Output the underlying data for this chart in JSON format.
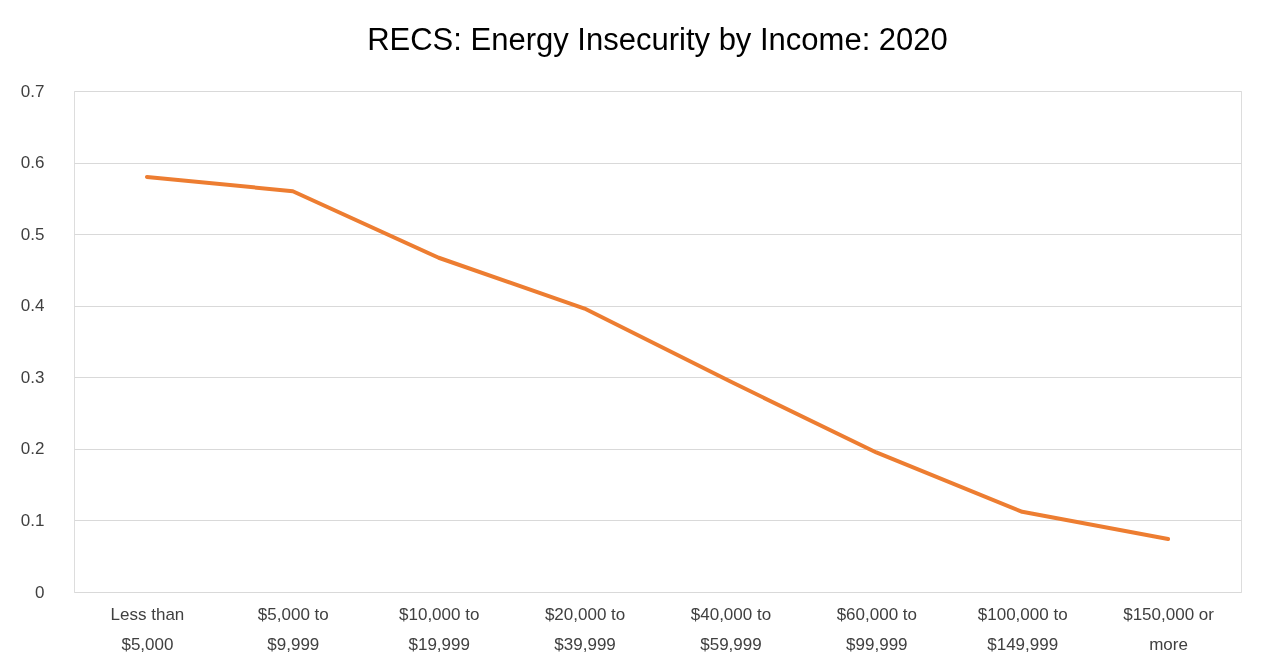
{
  "chart_data": {
    "type": "line",
    "title": "RECS: Energy Insecurity by Income: 2020",
    "categories": [
      "Less than $5,000",
      "$5,000 to $9,999",
      "$10,000 to $19,999",
      "$20,000 to $39,999",
      "$40,000 to $59,999",
      "$60,000 to $99,999",
      "$100,000 to $149,999",
      "$150,000 or more"
    ],
    "series": [
      {
        "color": "#ed7d31",
        "values": [
          0.58,
          0.56,
          0.467,
          0.396,
          0.294,
          0.195,
          0.112,
          0.074
        ]
      }
    ],
    "ylim": [
      0,
      0.7
    ],
    "yticks": [
      0,
      0.1,
      0.2,
      0.3,
      0.4,
      0.5,
      0.6,
      0.7
    ],
    "grid": "y",
    "marker": "none",
    "line_style": "solid"
  }
}
